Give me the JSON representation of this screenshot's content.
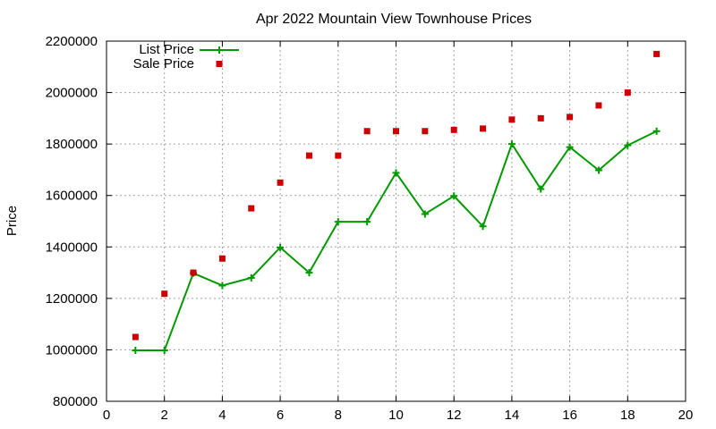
{
  "chart_data": {
    "type": "line",
    "title": "Apr 2022 Mountain View Townhouse Prices",
    "xlabel": "",
    "ylabel": "Price",
    "xlim": [
      0,
      20
    ],
    "ylim": [
      800000,
      2200000
    ],
    "xticks": [
      0,
      2,
      4,
      6,
      8,
      10,
      12,
      14,
      16,
      18,
      20
    ],
    "yticks": [
      800000,
      1000000,
      1200000,
      1400000,
      1600000,
      1800000,
      2000000,
      2200000
    ],
    "grid": true,
    "legend_position": "top-left",
    "series": [
      {
        "name": "List Price",
        "style": "line-with-plus-markers",
        "color": "#009900",
        "x": [
          1,
          2,
          3,
          4,
          5,
          6,
          7,
          8,
          9,
          10,
          11,
          12,
          13,
          14,
          15,
          16,
          17,
          18,
          19
        ],
        "y": [
          998000,
          998000,
          1298000,
          1250000,
          1280000,
          1398000,
          1300000,
          1498000,
          1498000,
          1688000,
          1528000,
          1598000,
          1480000,
          1800000,
          1625000,
          1788000,
          1698000,
          1795000,
          1850000
        ]
      },
      {
        "name": "Sale Price",
        "style": "square-markers",
        "color": "#cc0000",
        "x": [
          1,
          2,
          3,
          4,
          5,
          6,
          7,
          8,
          9,
          10,
          11,
          12,
          13,
          14,
          15,
          16,
          17,
          18,
          19
        ],
        "y": [
          1050000,
          1218000,
          1300000,
          1355000,
          1550000,
          1650000,
          1755000,
          1755000,
          1850000,
          1850000,
          1850000,
          1855000,
          1860000,
          1895000,
          1900000,
          1905000,
          1950000,
          2000000,
          2150000
        ]
      }
    ]
  }
}
